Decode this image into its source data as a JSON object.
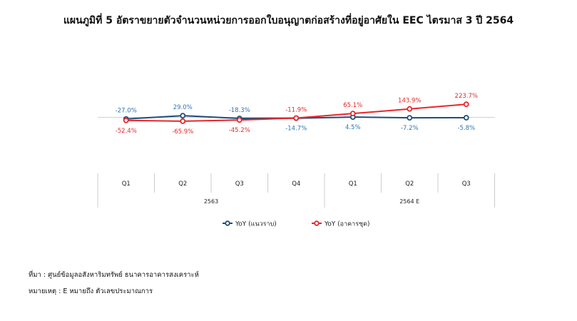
{
  "title": "แผนภูมิที่ 5 อัตราขยายตัวจำนวนหน่วยการออกใบอนุญาตก่อสร้างที่อยู่อาศัยใน EEC ไตรมาส 3 ปี 2564",
  "notes": {
    "source": "ที่มา : ศูนย์ข้อมูลอสังหาริมทรัพย์ ธนาคารอาคารสงเคราะห์",
    "remark": "หมายเหตุ : E หมายถึง ตัวเลขประมาณการ"
  },
  "colors": {
    "series1": "#1f4e79",
    "series2": "#e8262a",
    "label1": "#2e75b6",
    "label2": "#e8262a",
    "grid": "#cccccc"
  },
  "chart_data": {
    "type": "line",
    "categories": [
      "Q1",
      "Q2",
      "Q3",
      "Q4",
      "Q1",
      "Q2",
      "Q3"
    ],
    "groups": [
      {
        "label": "2563",
        "span": 4
      },
      {
        "label": "2564 E",
        "span": 3
      }
    ],
    "series": [
      {
        "name": "YoY (แนวราบ)",
        "values": [
          -27.0,
          29.0,
          -18.3,
          -14.7,
          4.5,
          -7.2,
          -5.8
        ],
        "labels": [
          "-27.0%",
          "29.0%",
          "-18.3%",
          "-14.7%",
          "4.5%",
          "-7.2%",
          "-5.8%"
        ]
      },
      {
        "name": "YoY (อาคารชุด)",
        "values": [
          -52.4,
          -65.9,
          -45.2,
          -11.9,
          65.1,
          143.9,
          223.7
        ],
        "labels": [
          "-52.4%",
          "-65.9%",
          "-45.2%",
          "-11.9%",
          "65.1%",
          "143.9%",
          "223.7%"
        ]
      }
    ],
    "legend": "bottom"
  }
}
